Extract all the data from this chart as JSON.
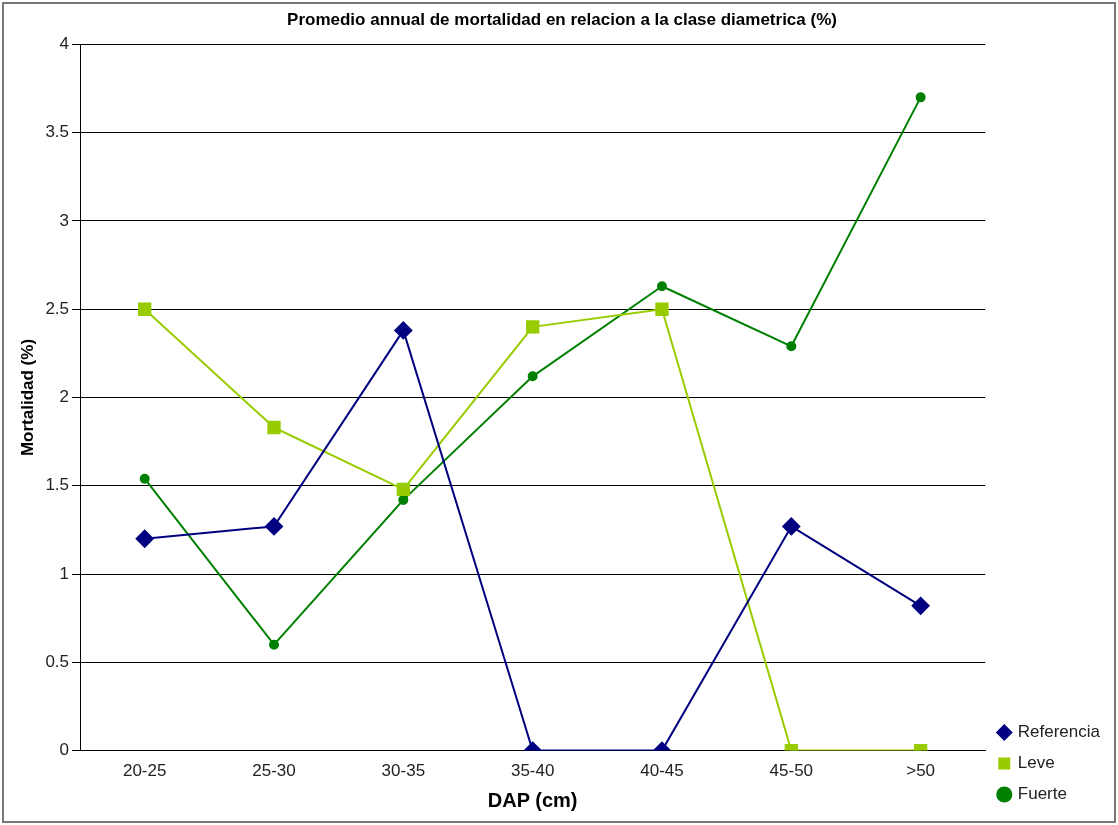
{
  "chart_data": {
    "type": "line",
    "title": "Promedio annual de mortalidad en relacion a la clase diametrica (%)",
    "xlabel": "DAP (cm)",
    "ylabel": "Mortalidad (%)",
    "categories": [
      "20-25",
      "25-30",
      "30-35",
      "35-40",
      "40-45",
      "45-50",
      ">50"
    ],
    "series": [
      {
        "name": "Referencia",
        "color": "#000080",
        "marker": "diamond",
        "values": [
          1.2,
          1.27,
          2.38,
          0,
          0,
          1.27,
          0.82
        ]
      },
      {
        "name": "Leve",
        "color": "#99cc00",
        "marker": "square",
        "values": [
          2.5,
          1.83,
          1.48,
          2.4,
          2.5,
          0,
          0
        ]
      },
      {
        "name": "Fuerte",
        "color": "#008000",
        "marker": "circle",
        "values": [
          1.54,
          0.6,
          1.42,
          2.12,
          2.63,
          2.29,
          3.7
        ]
      }
    ],
    "ylim": [
      0,
      4
    ],
    "yticks": [
      0,
      0.5,
      1,
      1.5,
      2,
      2.5,
      3,
      3.5,
      4
    ],
    "grid": "y",
    "legend": "bottom right"
  }
}
